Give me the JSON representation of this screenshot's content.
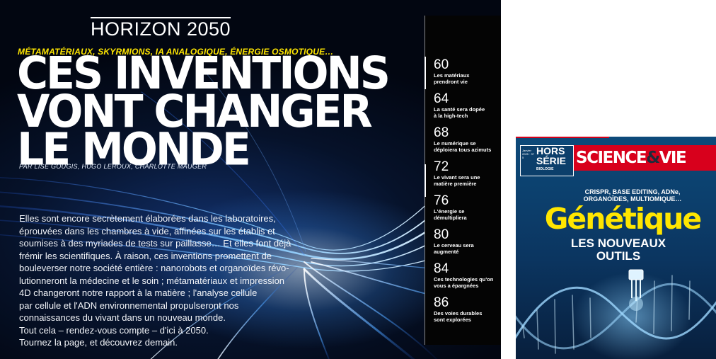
{
  "spread": {
    "section_title": "HORIZON 2050",
    "kicker": "MÉTAMATÉRIAUX, SKYRMIONS, IA ANALOGIQUE, ÉNERGIE OSMOTIQUE…",
    "headline": [
      "CES INVENTIONS",
      "VONT CHANGER",
      "LE MONDE"
    ],
    "byline": "PAR LISE GOUGIS, HUGO LEROUX, CHARLOTTE MAUGER",
    "intro_lines": [
      "Elles sont encore secrètement élaborées dans les laboratoires,",
      "éprouvées dans les chambres à vide, affinées sur les établis et",
      "soumises à des myriades de tests sur paillasse… Et elles font déjà",
      "frémir les scientifiques. À raison, ces inventions promettent de",
      "bouleverser notre société entière : nanorobots et organoïdes révo-",
      "lutionneront la médecine et le soin ; métamatériaux et impression",
      "4D changeront notre rapport à la matière ; l'analyse cellule",
      "par cellule et l'ADN environnemental propulseront nos",
      "connaissances du vivant dans un nouveau monde.",
      "Tout cela – rendez-vous compte – d'ici à 2050.",
      "Tournez la page, et découvrez demain."
    ]
  },
  "toc": [
    {
      "page": "60",
      "text_lines": [
        "Les matériaux",
        "prendront vie"
      ]
    },
    {
      "page": "64",
      "text_lines": [
        "La santé sera dopée",
        "à la high-tech"
      ]
    },
    {
      "page": "68",
      "text_lines": [
        "Le numérique se",
        "déploiera tous azimuts"
      ]
    },
    {
      "page": "72",
      "text_lines": [
        "Le vivant sera une",
        "matière première"
      ]
    },
    {
      "page": "76",
      "text_lines": [
        "L'énergie se",
        "démultipliera"
      ]
    },
    {
      "page": "80",
      "text_lines": [
        "Le cerveau sera",
        "augmenté"
      ]
    },
    {
      "page": "84",
      "text_lines": [
        "Ces technologies qu'on",
        "vous a épargnées"
      ]
    },
    {
      "page": "86",
      "text_lines": [
        "Des voies durables",
        "sont explorées"
      ]
    }
  ],
  "cover": {
    "hors_serie_line1": "HORS",
    "hors_serie_line2": "SÉRIE",
    "hors_serie_small": "Janvier 2025 · 37 5",
    "hors_serie_sub": "BIOLOGIE",
    "magazine_name_part1": "SCIENCE",
    "magazine_name_amp": "&",
    "magazine_name_part2": "VIE",
    "subtitle_lines": [
      "CRISPR, BASE EDITING, ADNe,",
      "ORGANOÏDES, MULTIOMIQUE…"
    ],
    "main_title": "Génétique",
    "tagline_lines": [
      "LES NOUVEAUX",
      "OUTILS"
    ],
    "colors": {
      "brand_red": "#d8001c",
      "title_yellow": "#ffe600",
      "cover_blue": "#0b3560"
    }
  }
}
